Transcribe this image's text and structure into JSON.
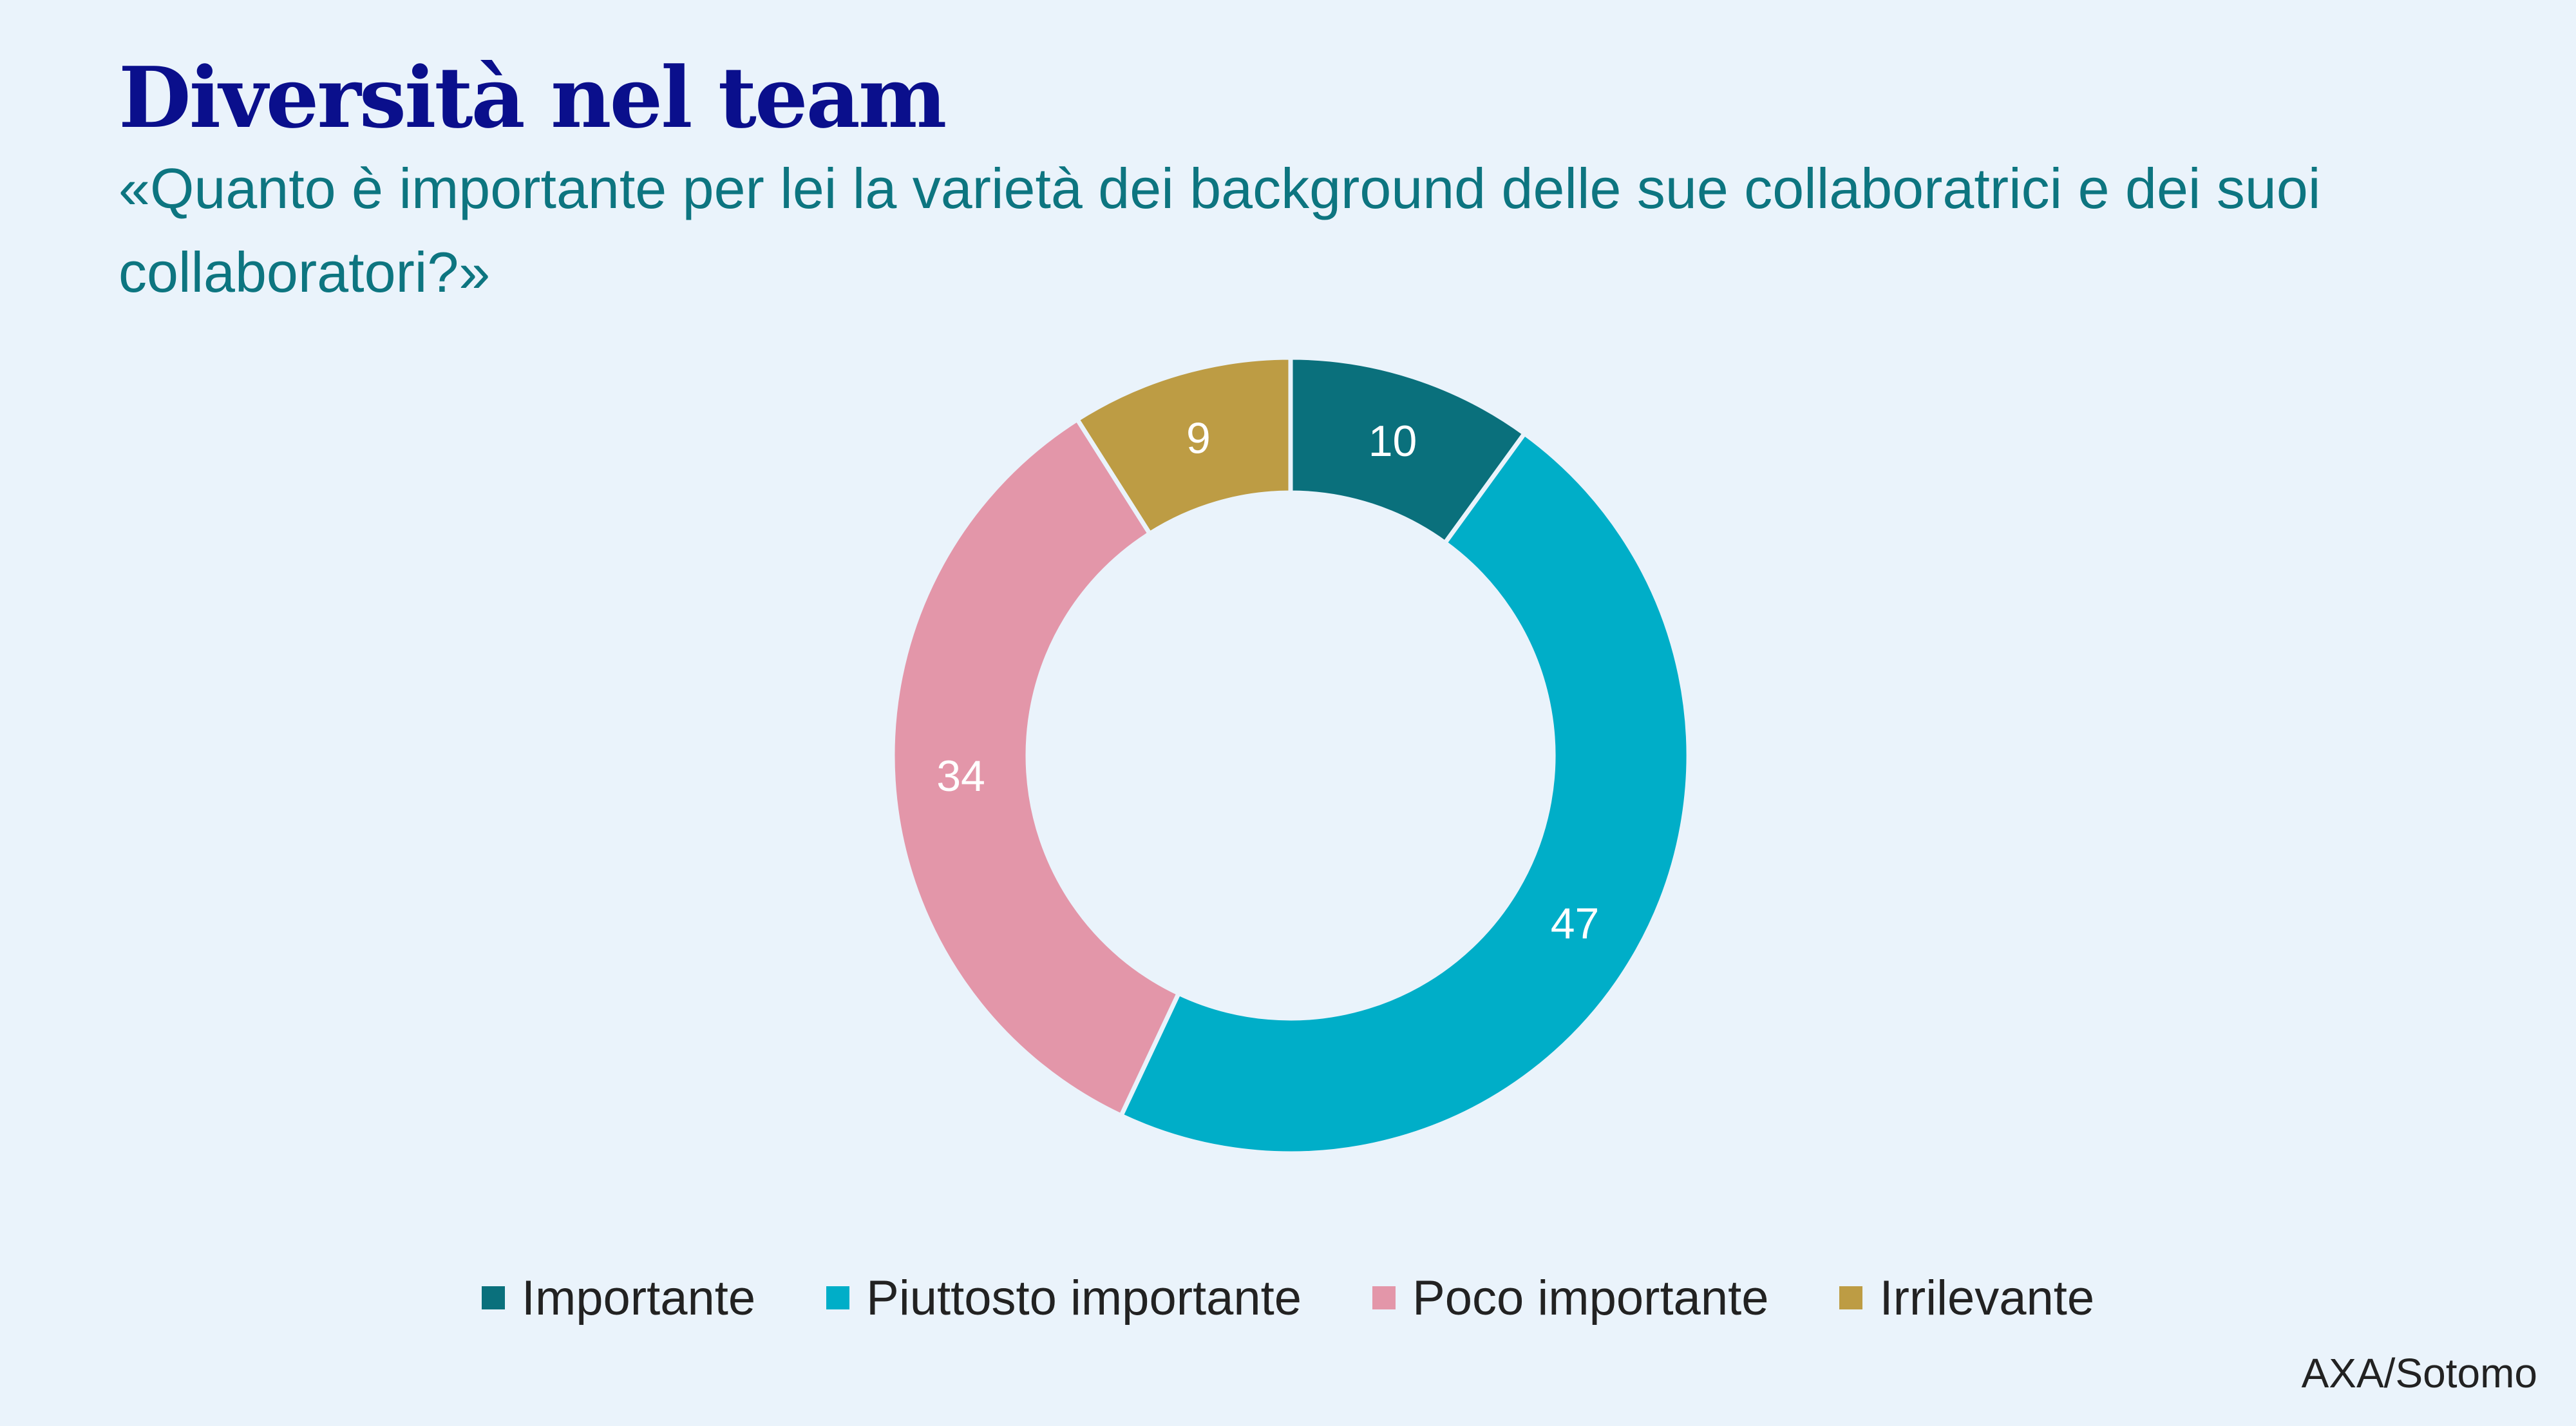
{
  "header": {
    "title": "Diversità nel team",
    "subtitle": "«Quanto è importante per lei la varietà dei background delle sue collaboratrici e dei suoi collaboratori?»"
  },
  "chart_data": {
    "type": "pie",
    "donut": true,
    "categories": [
      "Importante",
      "Piuttosto importante",
      "Poco importante",
      "Irrilevante"
    ],
    "values": [
      10,
      47,
      34,
      9
    ],
    "labels": [
      "10",
      "47",
      "34",
      "9"
    ],
    "colors": [
      "#0a707c",
      "#00aec8",
      "#e396a9",
      "#bd9c44"
    ],
    "legend_position": "bottom",
    "start": "top",
    "direction": "clockwise"
  },
  "legend": {
    "items": [
      {
        "label": "Importante",
        "color": "#0a707c"
      },
      {
        "label": "Piuttosto importante",
        "color": "#00aec8"
      },
      {
        "label": "Poco importante",
        "color": "#e396a9"
      },
      {
        "label": "Irrilevante",
        "color": "#bd9c44"
      }
    ]
  },
  "source": "AXA/Sotomo"
}
